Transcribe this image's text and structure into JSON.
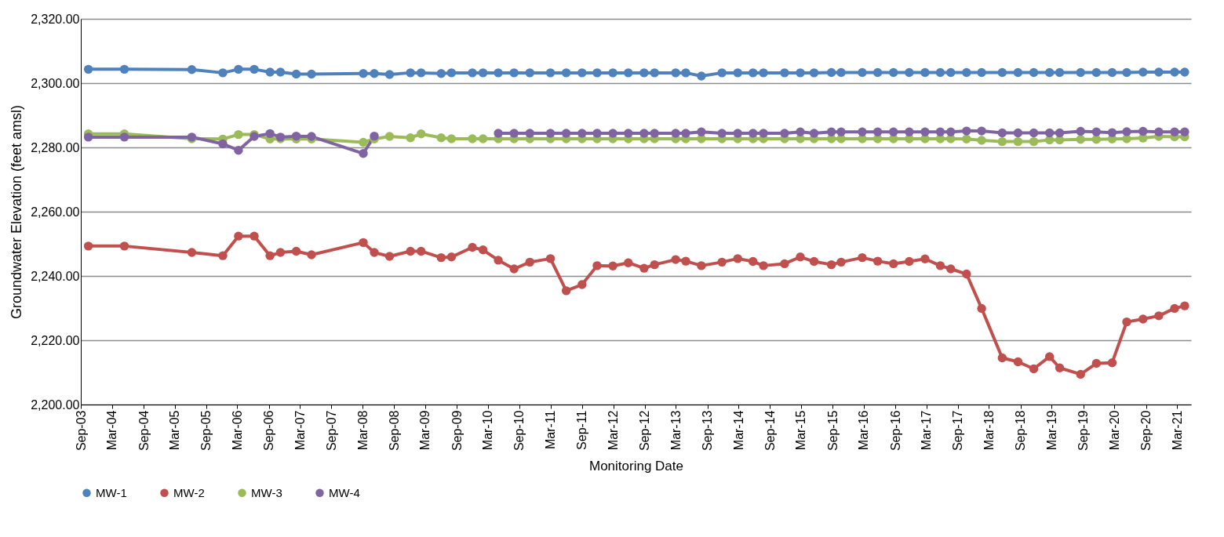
{
  "chart_data": {
    "type": "line",
    "xlabel": "Monitoring Date",
    "ylabel": "Groundwater Elevation (feet amsl)",
    "x": [
      "2003-10-15",
      "2004-05-12",
      "2005-06-09",
      "2005-12-07",
      "2006-03-08",
      "2006-06-08",
      "2006-09-08",
      "2006-11-08",
      "2007-02-08",
      "2007-05-08",
      "2008-03-05",
      "2008-05-08",
      "2008-08-05",
      "2008-12-05",
      "2009-02-05",
      "2009-06-02",
      "2009-08-01",
      "2009-12-01",
      "2010-02-01",
      "2010-05-01",
      "2010-08-01",
      "2010-11-01",
      "2011-03-01",
      "2011-06-01",
      "2011-09-01",
      "2011-11-28",
      "2012-02-28",
      "2012-05-28",
      "2012-08-28",
      "2012-10-28",
      "2013-02-28",
      "2013-04-28",
      "2013-07-28",
      "2013-11-25",
      "2014-02-25",
      "2014-05-25",
      "2014-07-25",
      "2014-11-25",
      "2015-02-25",
      "2015-05-16",
      "2015-08-25",
      "2015-10-21",
      "2016-02-21",
      "2016-05-21",
      "2016-08-21",
      "2016-11-21",
      "2017-02-21",
      "2017-05-21",
      "2017-07-21",
      "2017-10-21",
      "2018-01-17",
      "2018-05-17",
      "2018-08-17",
      "2018-11-17",
      "2019-02-17",
      "2019-04-17",
      "2019-08-17",
      "2019-11-17",
      "2020-02-17",
      "2020-05-12",
      "2020-08-15",
      "2020-11-15",
      "2021-02-15",
      "2021-04-15"
    ],
    "series": [
      {
        "name": "MW-1",
        "color": "#4f81bd",
        "values": [
          2304.3,
          2304.3,
          2304.2,
          2303.2,
          2304.3,
          2304.3,
          2303.4,
          2303.4,
          2302.8,
          2302.8,
          2303.0,
          2303.0,
          2302.7,
          2303.2,
          2303.2,
          2303.0,
          2303.2,
          2303.2,
          2303.2,
          2303.2,
          2303.2,
          2303.2,
          2303.2,
          2303.2,
          2303.2,
          2303.2,
          2303.2,
          2303.2,
          2303.2,
          2303.2,
          2303.2,
          2303.2,
          2302.2,
          2303.2,
          2303.2,
          2303.2,
          2303.2,
          2303.2,
          2303.2,
          2303.2,
          2303.3,
          2303.3,
          2303.3,
          2303.3,
          2303.3,
          2303.3,
          2303.3,
          2303.3,
          2303.3,
          2303.3,
          2303.3,
          2303.3,
          2303.3,
          2303.3,
          2303.3,
          2303.3,
          2303.3,
          2303.3,
          2303.3,
          2303.3,
          2303.4,
          2303.4,
          2303.4,
          2303.4
        ]
      },
      {
        "name": "MW-2",
        "color": "#c0504d",
        "values": [
          2249.3,
          2249.3,
          2247.3,
          2246.3,
          2252.4,
          2252.4,
          2246.3,
          2247.3,
          2247.7,
          2246.6,
          2250.4,
          2247.3,
          2246.1,
          2247.7,
          2247.7,
          2245.7,
          2245.9,
          2248.9,
          2248.1,
          2244.9,
          2242.2,
          2244.3,
          2245.4,
          2235.4,
          2237.3,
          2243.2,
          2243.1,
          2244.1,
          2242.4,
          2243.5,
          2245.1,
          2244.6,
          2243.2,
          2244.3,
          2245.4,
          2244.5,
          2243.2,
          2243.8,
          2245.9,
          2244.5,
          2243.5,
          2244.3,
          2245.7,
          2244.6,
          2243.8,
          2244.5,
          2245.3,
          2243.2,
          2242.2,
          2240.6,
          2229.9,
          2214.5,
          2213.3,
          2211.1,
          2214.9,
          2211.4,
          2209.4,
          2212.8,
          2213.0,
          2225.7,
          2226.6,
          2227.6,
          2229.9,
          2230.7
        ]
      },
      {
        "name": "MW-3",
        "color": "#9bbb59",
        "values": [
          2284.2,
          2284.2,
          2282.7,
          2282.6,
          2284.0,
          2284.0,
          2282.6,
          2282.7,
          2282.6,
          2282.6,
          2281.6,
          2282.6,
          2283.4,
          2283.0,
          2284.2,
          2283.0,
          2282.7,
          2282.7,
          2282.7,
          2282.7,
          2282.7,
          2282.7,
          2282.7,
          2282.7,
          2282.7,
          2282.7,
          2282.7,
          2282.7,
          2282.7,
          2282.7,
          2282.7,
          2282.7,
          2282.7,
          2282.7,
          2282.7,
          2282.7,
          2282.7,
          2282.7,
          2282.7,
          2282.7,
          2282.7,
          2282.7,
          2282.7,
          2282.7,
          2282.7,
          2282.7,
          2282.7,
          2282.7,
          2282.7,
          2282.6,
          2282.2,
          2281.8,
          2281.8,
          2281.8,
          2282.3,
          2282.3,
          2282.5,
          2282.5,
          2282.6,
          2282.7,
          2282.9,
          2283.4,
          2283.3,
          2283.3
        ]
      },
      {
        "name": "MW-4",
        "color": "#8064a2",
        "values": [
          2283.2,
          2283.2,
          2283.2,
          2281.1,
          2279.1,
          2283.4,
          2284.3,
          2283.2,
          2283.5,
          2283.4,
          2278.1,
          2283.5,
          null,
          null,
          null,
          null,
          null,
          null,
          null,
          2284.4,
          2284.4,
          2284.4,
          2284.4,
          2284.4,
          2284.4,
          2284.4,
          2284.4,
          2284.4,
          2284.4,
          2284.4,
          2284.4,
          2284.4,
          2284.8,
          2284.4,
          2284.4,
          2284.4,
          2284.4,
          2284.4,
          2284.8,
          2284.4,
          2284.8,
          2284.8,
          2284.8,
          2284.8,
          2284.8,
          2284.8,
          2284.8,
          2284.8,
          2284.8,
          2285.1,
          2285.1,
          2284.5,
          2284.5,
          2284.5,
          2284.5,
          2284.5,
          2285.0,
          2284.8,
          2284.6,
          2284.9,
          2285.0,
          2284.8,
          2284.8,
          2284.8
        ]
      }
    ],
    "xlim": [
      "2003-09-01",
      "2021-05-22"
    ],
    "xticks": [
      {
        "value": "2003-09-01",
        "label": "Sep-03"
      },
      {
        "value": "2004-03-01",
        "label": "Mar-04"
      },
      {
        "value": "2004-09-01",
        "label": "Sep-04"
      },
      {
        "value": "2005-03-01",
        "label": "Mar-05"
      },
      {
        "value": "2005-09-01",
        "label": "Sep-05"
      },
      {
        "value": "2006-03-01",
        "label": "Mar-06"
      },
      {
        "value": "2006-09-01",
        "label": "Sep-06"
      },
      {
        "value": "2007-03-01",
        "label": "Mar-07"
      },
      {
        "value": "2007-09-01",
        "label": "Sep-07"
      },
      {
        "value": "2008-03-01",
        "label": "Mar-08"
      },
      {
        "value": "2008-09-01",
        "label": "Sep-08"
      },
      {
        "value": "2009-03-01",
        "label": "Mar-09"
      },
      {
        "value": "2009-09-01",
        "label": "Sep-09"
      },
      {
        "value": "2010-03-01",
        "label": "Mar-10"
      },
      {
        "value": "2010-09-01",
        "label": "Sep-10"
      },
      {
        "value": "2011-03-01",
        "label": "Mar-11"
      },
      {
        "value": "2011-09-01",
        "label": "Sep-11"
      },
      {
        "value": "2012-03-01",
        "label": "Mar-12"
      },
      {
        "value": "2012-09-01",
        "label": "Sep-12"
      },
      {
        "value": "2013-03-01",
        "label": "Mar-13"
      },
      {
        "value": "2013-09-01",
        "label": "Sep-13"
      },
      {
        "value": "2014-03-01",
        "label": "Mar-14"
      },
      {
        "value": "2014-09-01",
        "label": "Sep-14"
      },
      {
        "value": "2015-03-01",
        "label": "Mar-15"
      },
      {
        "value": "2015-09-01",
        "label": "Sep-15"
      },
      {
        "value": "2016-03-01",
        "label": "Mar-16"
      },
      {
        "value": "2016-09-01",
        "label": "Sep-16"
      },
      {
        "value": "2017-03-01",
        "label": "Mar-17"
      },
      {
        "value": "2017-09-01",
        "label": "Sep-17"
      },
      {
        "value": "2018-03-01",
        "label": "Mar-18"
      },
      {
        "value": "2018-09-01",
        "label": "Sep-18"
      },
      {
        "value": "2019-03-01",
        "label": "Mar-19"
      },
      {
        "value": "2019-09-01",
        "label": "Sep-19"
      },
      {
        "value": "2020-03-01",
        "label": "Mar-20"
      },
      {
        "value": "2020-09-01",
        "label": "Sep-20"
      },
      {
        "value": "2021-03-01",
        "label": "Mar-21"
      }
    ],
    "ylim": [
      2200,
      2320
    ],
    "yticks": [
      {
        "value": 2200,
        "label": "2,200.00"
      },
      {
        "value": 2220,
        "label": "2,220.00"
      },
      {
        "value": 2240,
        "label": "2,240.00"
      },
      {
        "value": 2260,
        "label": "2,260.00"
      },
      {
        "value": 2280,
        "label": "2,280.00"
      },
      {
        "value": 2300,
        "label": "2,300.00"
      },
      {
        "value": 2320,
        "label": "2,320.00"
      }
    ],
    "grid": "y",
    "legend": "bottom",
    "marker": "circle",
    "line_style": "solid"
  }
}
